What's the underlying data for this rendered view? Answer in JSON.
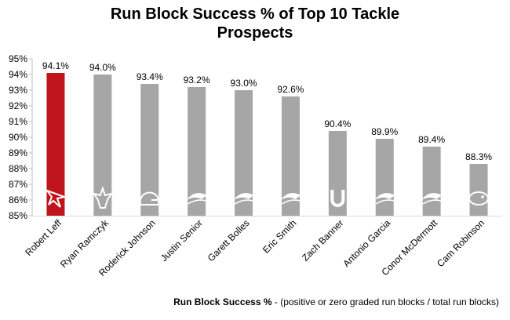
{
  "title_line1": "Run Block Success % of Top 10 Tackle",
  "title_line2": "Prospects",
  "footnote": {
    "label": "Run Block Success %",
    "text": " - (positive or zero graded run blocks / total run blocks)"
  },
  "colors": {
    "highlight": "#c0141c",
    "bar": "#a6a6a6",
    "logo": "#ffffff",
    "text": "#000000"
  },
  "chart_data": {
    "type": "bar",
    "categories": [
      "Robert Leff",
      "Ryan Ramczyk",
      "Roderick Johnson",
      "Justin Senior",
      "Garett Bolles",
      "Eric Smith",
      "Zach Banner",
      "Antonio Garcia",
      "Conor McDermott",
      "Cam Robinson"
    ],
    "values": [
      94.1,
      94.0,
      93.4,
      93.2,
      93.0,
      92.6,
      90.4,
      89.9,
      89.4,
      88.3
    ],
    "value_labels": [
      "94.1%",
      "94.0%",
      "93.4%",
      "93.2%",
      "93.0%",
      "92.6%",
      "90.4%",
      "89.9%",
      "89.4%",
      "88.3%"
    ],
    "highlight_index": 0,
    "bar_icons": [
      "falcons-logo-icon",
      "saints-logo-icon",
      "browns-helmet-icon",
      "seahawks-logo-icon",
      "broncos-logo-icon",
      "dolphins-logo-icon",
      "colts-horseshoe-icon",
      "patriots-logo-icon",
      "patriots-logo-icon",
      "jaguars-logo-icon"
    ],
    "y_ticks": [
      "85%",
      "86%",
      "87%",
      "88%",
      "89%",
      "90%",
      "91%",
      "92%",
      "93%",
      "94%",
      "95%"
    ],
    "ylim": [
      85,
      95
    ],
    "grid": false,
    "legend": "none",
    "xlabel": "",
    "ylabel": ""
  }
}
